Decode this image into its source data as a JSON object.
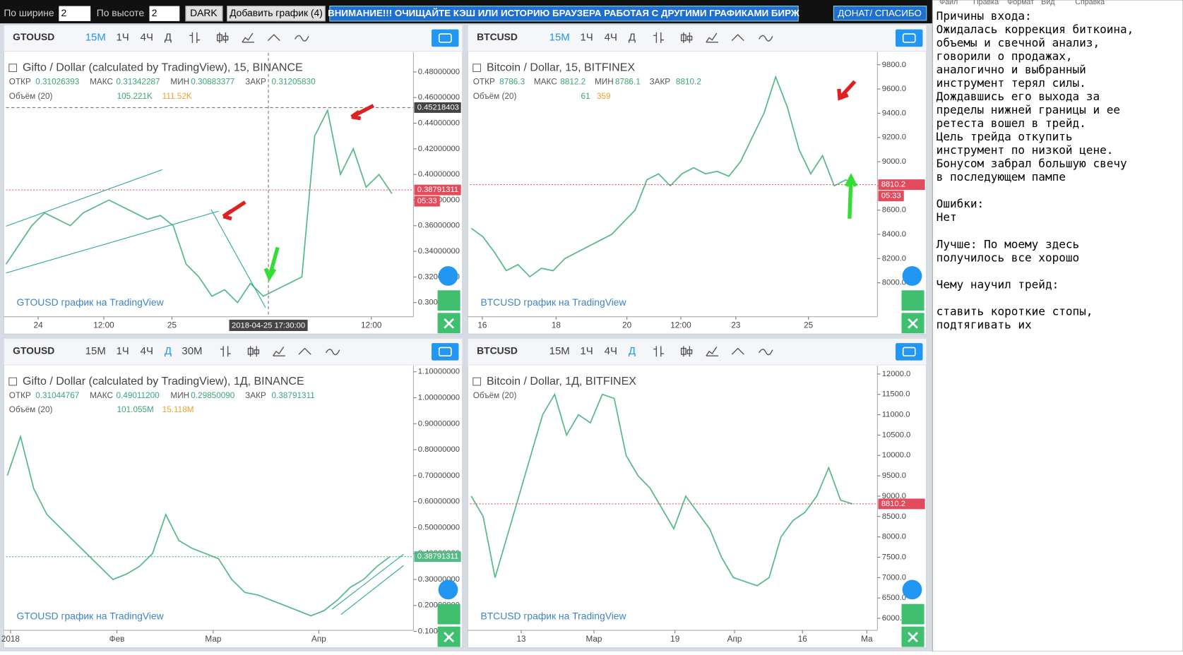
{
  "top_bar": {
    "width_label": "По ширине",
    "width_value": "2",
    "height_label": "По высоте",
    "height_value": "2",
    "dark_button": "DARK",
    "add_button": "Добавить график (4)",
    "warning": "ВНИМАНИЕ!!! ОЧИЩАЙТЕ КЭШ ИЛИ ИСТОРИЮ БРАУЗЕРА РАБОТАЯ С ДРУГИМИ ГРАФИКАМИ БИРЖ",
    "donate": "ДОНАТ/ СПАСИБО"
  },
  "notepad": {
    "menu": [
      "Файл",
      "Правка",
      "Формат",
      "Вид",
      "Справка"
    ],
    "paragraphs": [
      [
        "Причины входа:",
        "Ожидалась коррекция биткоина,",
        "объемы и свечной анализ,",
        "говорили о продажах,",
        "аналогично и выбранный",
        "инструмент терял силы.",
        "Дождавшись его выхода за",
        "пределы нижней границы и ее",
        "ретеста вошел в трейд.",
        "Цель трейда откупить",
        "инструмент по низкой цене.",
        "Бонусом забрал большую свечу",
        "в последующем пампе"
      ],
      [
        "Ошибки:",
        "Нет"
      ],
      [
        "Лучше: По моему здесь",
        "получилось все хорошо"
      ],
      [
        "Чему научил трейд:"
      ],
      [
        "ставить короткие стопы,",
        "подтягивать их"
      ]
    ]
  },
  "chart_data": [
    {
      "type": "line",
      "symbol": "GTOUSD",
      "intervals": [
        "15M",
        "1Ч",
        "4Ч",
        "Д"
      ],
      "active_interval": 0,
      "title": "Gifto / Dollar (calculated by TradingView), 15, BINANCE",
      "ohlc": [
        {
          "label": "ОТКР",
          "value": "0.31026393"
        },
        {
          "label": "МАКС",
          "value": "0.31342287"
        },
        {
          "label": "МИН",
          "value": "0.30883377"
        },
        {
          "label": "ЗАКР",
          "value": "0.31205830"
        }
      ],
      "volume_label": "Объём (20)",
      "volume_values": [
        "105.221K",
        "111.52K"
      ],
      "watermark": "GTOUSD график на TradingView",
      "color": "#53b987",
      "values": [
        0.33,
        0.345,
        0.36,
        0.37,
        0.365,
        0.36,
        0.37,
        0.375,
        0.38,
        0.375,
        0.37,
        0.365,
        0.368,
        0.36,
        0.33,
        0.32,
        0.305,
        0.31,
        0.3,
        0.315,
        0.305,
        0.31,
        0.315,
        0.32,
        0.43,
        0.45,
        0.4,
        0.42,
        0.39,
        0.4,
        0.385
      ],
      "xlim": [
        0,
        31.5
      ],
      "ylim": [
        0.289,
        0.492
      ],
      "yticks": [
        {
          "value": 0.3,
          "label": "0.30000000"
        },
        {
          "value": 0.32,
          "label": "0.32000000"
        },
        {
          "value": 0.34,
          "label": "0.34000000"
        },
        {
          "value": 0.36,
          "label": "0.36000000"
        },
        {
          "value": 0.38,
          "label": "0.38000000"
        },
        {
          "value": 0.4,
          "label": "0.40000000"
        },
        {
          "value": 0.42,
          "label": "0.42000000"
        },
        {
          "value": 0.44,
          "label": "0.44000000"
        },
        {
          "value": 0.46,
          "label": "0.46000000"
        },
        {
          "value": 0.48,
          "label": "0.48000000"
        }
      ],
      "xticks": [
        {
          "value": 2.5,
          "label": "24"
        },
        {
          "value": 7.6,
          "label": "12:00"
        },
        {
          "value": 12.9,
          "label": "25"
        },
        {
          "value": 28.4,
          "label": "12:00"
        }
      ],
      "last_price": 0.38791311,
      "last_color": "#e24b5b",
      "countdown": "05:33",
      "crosshair": {
        "price": 0.45218403,
        "x": 20.4,
        "time": "2018-04-25 17:30:00"
      }
    },
    {
      "type": "line",
      "symbol": "BTCUSD",
      "intervals": [
        "15M",
        "1Ч",
        "4Ч",
        "Д"
      ],
      "active_interval": 0,
      "title": "Bitcoin / Dollar, 15, BITFINEX",
      "ohlc": [
        {
          "label": "ОТКР",
          "value": "8786.3"
        },
        {
          "label": "МАКС",
          "value": "8812.2"
        },
        {
          "label": "МИН",
          "value": "8786.1"
        },
        {
          "label": "ЗАКР",
          "value": "8810.2"
        }
      ],
      "volume_label": "Объём (20)",
      "volume_values": [
        "61",
        "359"
      ],
      "watermark": "BTCUSD график на TradingView",
      "color": "#53b987",
      "values": [
        8450,
        8380,
        8250,
        8100,
        8150,
        8050,
        8120,
        8100,
        8200,
        8250,
        8300,
        8350,
        8400,
        8500,
        8600,
        8850,
        8900,
        8800,
        8900,
        8950,
        8900,
        8920,
        8880,
        9000,
        9200,
        9400,
        9700,
        9450,
        9100,
        8900,
        9050,
        8800,
        8850,
        8810
      ],
      "xlim": [
        -0.1,
        34.5
      ],
      "ylim": [
        7720,
        9868
      ],
      "yticks": [
        {
          "value": 8000,
          "label": "8000.0"
        },
        {
          "value": 8200,
          "label": "8200.0"
        },
        {
          "value": 8400,
          "label": "8400.0"
        },
        {
          "value": 8600,
          "label": "8600.0"
        },
        {
          "value": 8800,
          "label": "8800.0"
        },
        {
          "value": 9000,
          "label": "9000.0"
        },
        {
          "value": 9200,
          "label": "9200.0"
        },
        {
          "value": 9400,
          "label": "9400.0"
        },
        {
          "value": 9600,
          "label": "9600.0"
        },
        {
          "value": 9800,
          "label": "9800.0"
        }
      ],
      "xticks": [
        {
          "value": 0.95,
          "label": "16"
        },
        {
          "value": 7.25,
          "label": "18"
        },
        {
          "value": 13.3,
          "label": "20"
        },
        {
          "value": 17.9,
          "label": "12:00"
        },
        {
          "value": 22.6,
          "label": "23"
        },
        {
          "value": 28.8,
          "label": "25"
        }
      ],
      "last_price": 8810.2,
      "last_color": "#e24b5b",
      "countdown": "05:33"
    },
    {
      "type": "line",
      "symbol": "GTOUSD",
      "intervals": [
        "15M",
        "1Ч",
        "4Ч",
        "Д",
        "30M"
      ],
      "active_interval": 3,
      "title": "Gifto / Dollar (calculated by TradingView), 1Д, BINANCE",
      "ohlc": [
        {
          "label": "ОТКР",
          "value": "0.31044767"
        },
        {
          "label": "МАКС",
          "value": "0.49011200"
        },
        {
          "label": "МИН",
          "value": "0.29850090"
        },
        {
          "label": "ЗАКР",
          "value": "0.38791311"
        }
      ],
      "volume_label": "Объём (20)",
      "volume_values": [
        "101.055M",
        "15.118M"
      ],
      "watermark": "GTOUSD график на TradingView",
      "color": "#53b987",
      "values": [
        0.7,
        0.85,
        0.65,
        0.55,
        0.5,
        0.45,
        0.4,
        0.35,
        0.3,
        0.32,
        0.35,
        0.4,
        0.55,
        0.45,
        0.42,
        0.4,
        0.38,
        0.3,
        0.25,
        0.24,
        0.22,
        0.2,
        0.18,
        0.16,
        0.18,
        0.22,
        0.27,
        0.3,
        0.35,
        0.388
      ],
      "xlim": [
        -0.1,
        30.6
      ],
      "ylim": [
        0.104,
        1.106
      ],
      "yticks": [
        {
          "value": 0.1,
          "label": "0.10000000"
        },
        {
          "value": 0.2,
          "label": "0.20000000"
        },
        {
          "value": 0.3,
          "label": "0.30000000"
        },
        {
          "value": 0.4,
          "label": "0.40000000"
        },
        {
          "value": 0.5,
          "label": "0.50000000"
        },
        {
          "value": 0.6,
          "label": "0.60000000"
        },
        {
          "value": 0.7,
          "label": "0.70000000"
        },
        {
          "value": 0.8,
          "label": "0.80000000"
        },
        {
          "value": 0.9,
          "label": "0.90000000"
        },
        {
          "value": 1.0,
          "label": "1.00000000"
        },
        {
          "value": 1.1,
          "label": "1.10000000"
        }
      ],
      "xticks": [
        {
          "value": 0.24,
          "label": "2018"
        },
        {
          "value": 8.3,
          "label": "Фев"
        },
        {
          "value": 15.6,
          "label": "Мар"
        },
        {
          "value": 23.6,
          "label": "Апр"
        }
      ],
      "last_price": 0.38791311,
      "last_color": "#53b987"
    },
    {
      "type": "line",
      "symbol": "BTCUSD",
      "intervals": [
        "15M",
        "1Ч",
        "4Ч",
        "Д"
      ],
      "active_interval": 3,
      "title": "Bitcoin / Dollar, 1Д, BITFINEX",
      "volume_label": "Объём (20)",
      "watermark": "BTCUSD график на TradingView",
      "color": "#53b987",
      "values": [
        9000,
        8500,
        7000,
        8000,
        9000,
        10000,
        11000,
        11500,
        10500,
        11000,
        10800,
        11500,
        11400,
        10000,
        9500,
        9200,
        8700,
        8200,
        9000,
        8600,
        8200,
        7500,
        7000,
        6900,
        6800,
        7000,
        8000,
        8400,
        8600,
        9000,
        9700,
        8900,
        8810
      ],
      "xlim": [
        -0.1,
        33.9
      ],
      "ylim": [
        5704,
        12093
      ],
      "yticks": [
        {
          "value": 6000,
          "label": "6000.0"
        },
        {
          "value": 6500,
          "label": "6500.0"
        },
        {
          "value": 7000,
          "label": "7000.0"
        },
        {
          "value": 7500,
          "label": "7500.0"
        },
        {
          "value": 8000,
          "label": "8000.0"
        },
        {
          "value": 8500,
          "label": "8500.0"
        },
        {
          "value": 9000,
          "label": "9000.0"
        },
        {
          "value": 9500,
          "label": "9500.0"
        },
        {
          "value": 10000,
          "label": "10000.0"
        },
        {
          "value": 10500,
          "label": "10500.0"
        },
        {
          "value": 11000,
          "label": "11000.0"
        },
        {
          "value": 11500,
          "label": "11500.0"
        },
        {
          "value": 12000,
          "label": "12000.0"
        }
      ],
      "xticks": [
        {
          "value": 4.2,
          "label": "13"
        },
        {
          "value": 10.3,
          "label": "Мар"
        },
        {
          "value": 17.1,
          "label": "19"
        },
        {
          "value": 22.1,
          "label": "Апр"
        },
        {
          "value": 27.8,
          "label": "16"
        },
        {
          "value": 33.2,
          "label": "Ма"
        }
      ],
      "last_price": 8810.2,
      "last_color": "#e24b5b"
    }
  ]
}
